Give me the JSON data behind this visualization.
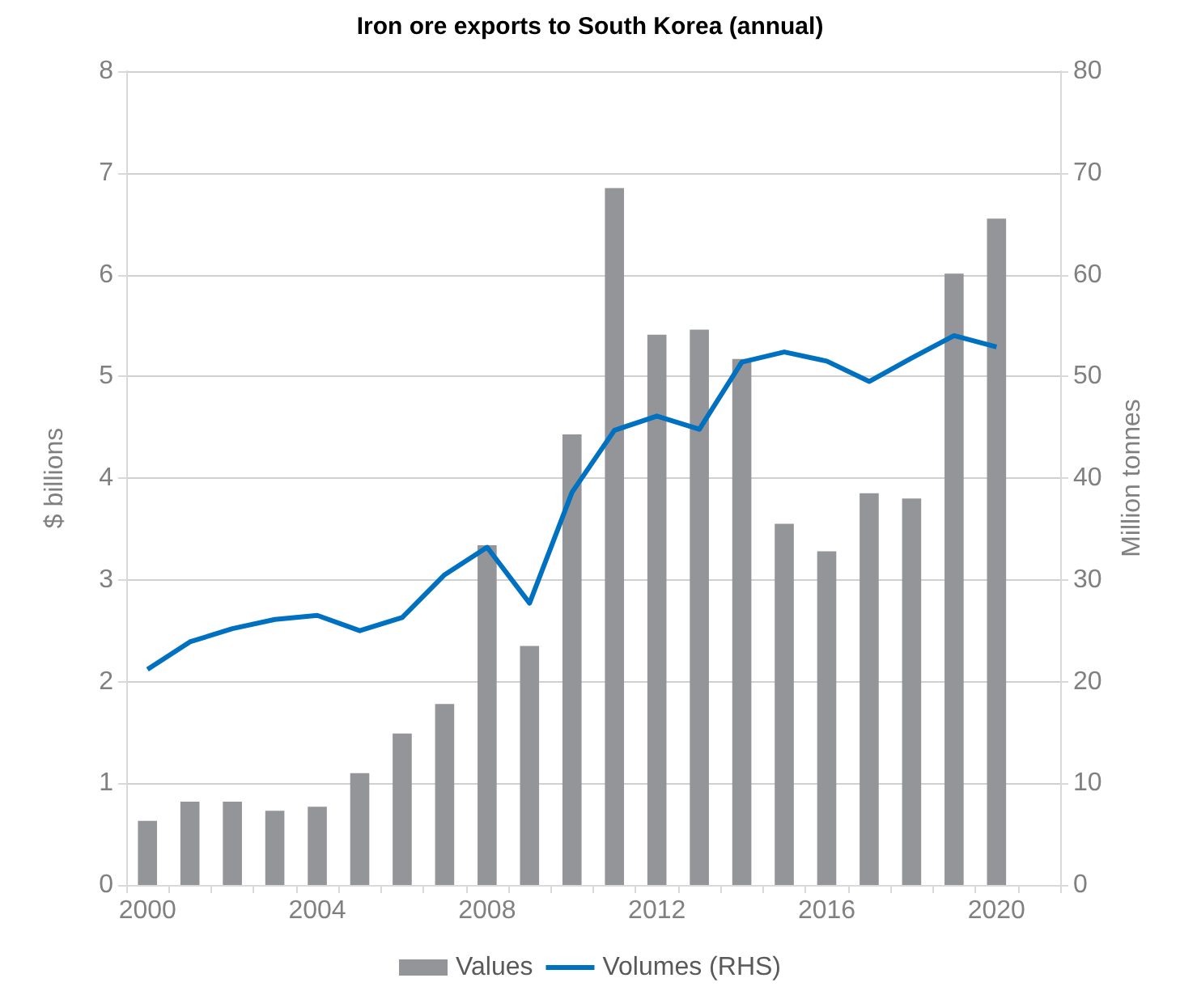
{
  "chart_data": {
    "type": "bar",
    "title": "Iron ore exports to South Korea (annual)",
    "ylabel": "$ billions",
    "y2label": "Million tonnes",
    "categories": [
      "2000",
      null,
      null,
      null,
      "2004",
      null,
      null,
      null,
      "2008",
      null,
      null,
      null,
      "2012",
      null,
      null,
      null,
      "2016",
      null,
      null,
      null,
      "2020",
      null
    ],
    "series": [
      {
        "name": "Values",
        "color": "#939598",
        "values": [
          0.63,
          0.82,
          0.82,
          0.73,
          0.77,
          1.1,
          1.49,
          1.78,
          3.34,
          2.35,
          4.43,
          6.85,
          5.41,
          5.46,
          5.17,
          3.55,
          3.28,
          3.85,
          3.8,
          6.01,
          6.55,
          null
        ]
      },
      {
        "name": "Volumes (RHS)",
        "type": "line",
        "axis": "y2",
        "color": "#0070c0",
        "values": [
          21.2,
          23.9,
          25.2,
          26.1,
          26.5,
          25.0,
          26.3,
          30.5,
          33.2,
          27.7,
          38.6,
          44.7,
          46.1,
          44.8,
          51.4,
          52.4,
          51.5,
          49.5,
          51.8,
          54.0,
          52.9,
          null
        ]
      }
    ],
    "ylim": [
      0,
      8
    ],
    "yticks": [
      0,
      1,
      2,
      3,
      4,
      5,
      6,
      7,
      8
    ],
    "y2lim": [
      0,
      80
    ],
    "y2ticks": [
      0,
      10,
      20,
      30,
      40,
      50,
      60,
      70,
      80
    ],
    "grid": "y",
    "legend": "bottom",
    "marker": "none",
    "line_style": "solid"
  }
}
